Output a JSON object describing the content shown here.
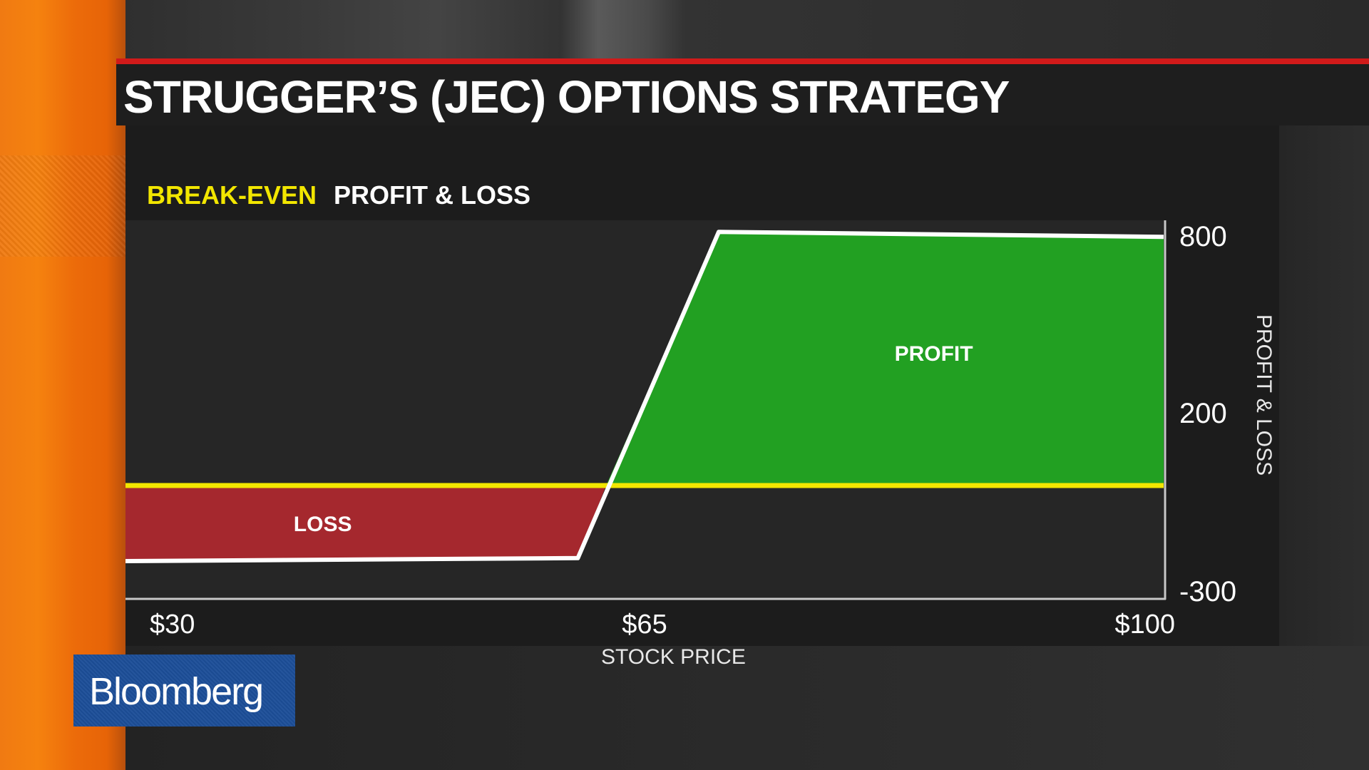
{
  "title": "STRUGGER’S (JEC) OPTIONS STRATEGY",
  "legend": {
    "break_even": "BREAK-EVEN",
    "profit_loss": "PROFIT & LOSS"
  },
  "logo": "Bloomberg",
  "colors": {
    "profit": "#22a022",
    "loss": "#a5282e",
    "break_even": "#f2e600",
    "payoff_line": "#ffffff",
    "accent_red": "#d11a1a",
    "logo_blue": "#1c4e98",
    "orange": "#f07a12"
  },
  "chart_data": {
    "type": "area",
    "title": "STRUGGER’S (JEC) OPTIONS STRATEGY",
    "subtitle": "PROFIT & LOSS",
    "xlabel": "STOCK PRICE",
    "ylabel": "PROFIT & LOSS",
    "xlim": [
      30,
      100
    ],
    "ylim": [
      -300,
      800
    ],
    "x_ticks": [
      {
        "value": 30,
        "label": "$30"
      },
      {
        "value": 65,
        "label": "$65"
      },
      {
        "value": 100,
        "label": "$100"
      }
    ],
    "y_ticks": [
      {
        "value": 800,
        "label": "800"
      },
      {
        "value": 200,
        "label": "200"
      },
      {
        "value": -300,
        "label": "-300"
      }
    ],
    "break_even": 0,
    "payoff": {
      "x": [
        30,
        60.5,
        70,
        100
      ],
      "y": [
        -200,
        -192,
        765,
        750
      ]
    },
    "regions": [
      {
        "label": "PROFIT",
        "x": 84.5,
        "y": 400
      },
      {
        "label": "LOSS",
        "x": 43.3,
        "y": -100
      }
    ],
    "grid": false,
    "legend_position": "top-left"
  }
}
